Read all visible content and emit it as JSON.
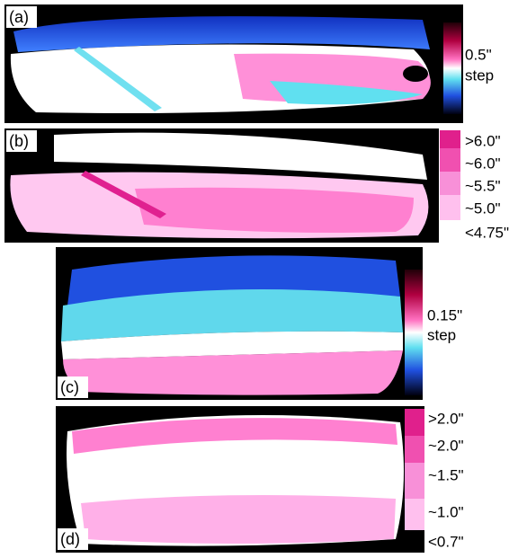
{
  "panels": [
    {
      "label": "(a)",
      "scale_labels": [
        "0.5\"",
        "step"
      ]
    },
    {
      "label": "(b)",
      "scale_labels": [
        ">6.0\"",
        "~6.0\"",
        "~5.5\"",
        "~5.0\"",
        "<4.75\""
      ]
    },
    {
      "label": "(c)",
      "scale_labels": [
        "0.15\"",
        "step"
      ]
    },
    {
      "label": "(d)",
      "scale_labels": [
        ">2.0\"",
        "~2.0\"",
        "~1.5\"",
        "~1.0\"",
        "<0.7\""
      ]
    }
  ]
}
